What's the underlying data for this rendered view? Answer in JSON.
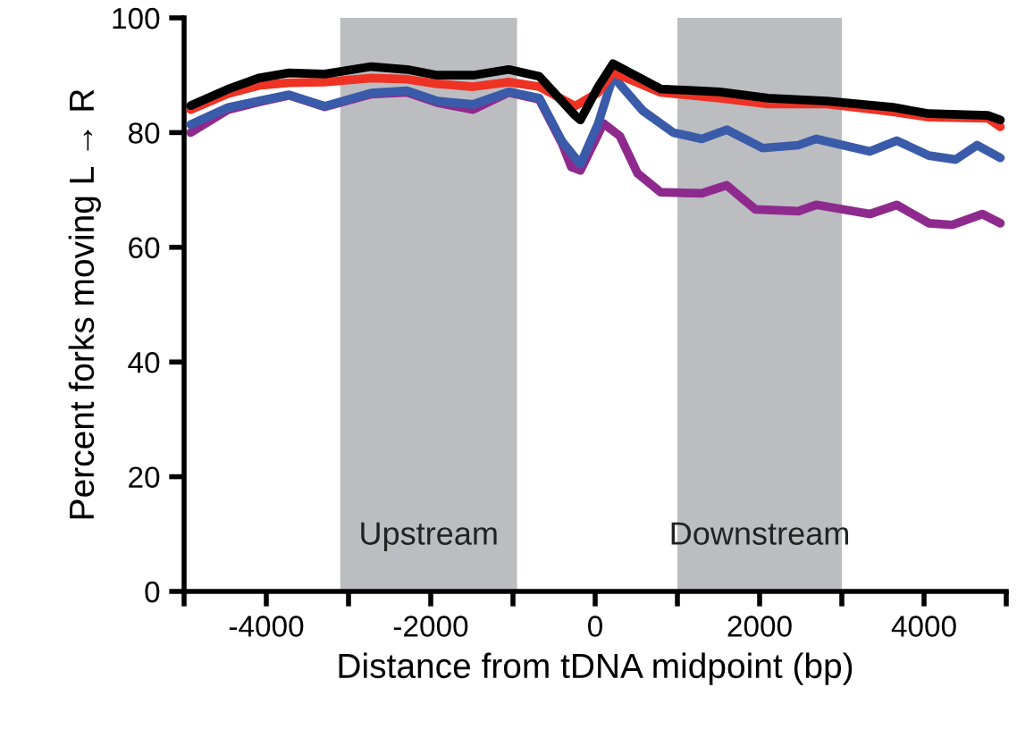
{
  "chart_data": {
    "type": "line",
    "xlabel": "Distance from tDNA midpoint (bp)",
    "ylabel": "Percent forks moving L → R",
    "xlim": [
      -5000,
      5000
    ],
    "ylim": [
      0,
      100
    ],
    "xticks": [
      {
        "value": -5000,
        "label": null
      },
      -4000,
      {
        "value": -3000,
        "label": null
      },
      -2000,
      {
        "value": -1000,
        "label": null
      },
      0,
      {
        "value": 1000,
        "label": null
      },
      2000,
      {
        "value": 3000,
        "label": null
      },
      4000,
      {
        "value": 5000,
        "label": null
      }
    ],
    "yticks": [
      0,
      20,
      40,
      60,
      80,
      100
    ],
    "grid": false,
    "marker": "none",
    "line_style": "solid",
    "bands": [
      {
        "axis": "x",
        "from": -3100,
        "to": -950,
        "label": "Upstream",
        "color": "#bcbdc1"
      },
      {
        "axis": "x",
        "from": 1000,
        "to": 3000,
        "label": "Downstream",
        "color": "#bcbdc1"
      }
    ],
    "series": [
      {
        "color": "#8e2a8e",
        "x": [
          -4920,
          -4463,
          -4093,
          -3724,
          -3289,
          -2724,
          -2289,
          -1920,
          -1485,
          -1050,
          -680,
          -400,
          -290,
          -180,
          100,
          300,
          515,
          797,
          1297,
          1600,
          1950,
          2470,
          2688,
          3340,
          3667,
          4058,
          4340,
          4710,
          4928
        ],
        "values": [
          80,
          84,
          85.3,
          86.5,
          84.5,
          86.7,
          87,
          85.2,
          84,
          87,
          85.8,
          78,
          74,
          73.4,
          81.6,
          79.4,
          72.9,
          69.6,
          69.4,
          70.8,
          66.6,
          66.3,
          67.4,
          65.8,
          67.4,
          64.2,
          63.9,
          65.8,
          64.2
        ]
      },
      {
        "color": "#3a5ba9",
        "x": [
          -4920,
          -4463,
          -4093,
          -3724,
          -3289,
          -2724,
          -2289,
          -1920,
          -1485,
          -1050,
          -680,
          -400,
          -180,
          37,
          217,
          580,
          950,
          1297,
          1600,
          2037,
          2470,
          2688,
          3340,
          3667,
          4058,
          4385,
          4645,
          4928
        ],
        "values": [
          81.4,
          84.4,
          85.5,
          86.6,
          84.6,
          86.9,
          87.3,
          85.5,
          84.9,
          87.1,
          86,
          78.4,
          74.5,
          81.6,
          89.8,
          83.8,
          80,
          78.9,
          80.5,
          77.3,
          77.8,
          78.9,
          76.7,
          78.6,
          76,
          75.3,
          77.8,
          75.6
        ]
      },
      {
        "color": "#ee3224",
        "x": [
          -4920,
          -4463,
          -4093,
          -3724,
          -3289,
          -2724,
          -2289,
          -1920,
          -1485,
          -1050,
          -680,
          -246,
          37,
          217,
          797,
          1515,
          2102,
          2820,
          3623,
          4058,
          4775,
          4928
        ],
        "values": [
          84,
          86.8,
          88.2,
          88.7,
          88.8,
          89.5,
          89.3,
          88.5,
          88,
          88.8,
          88,
          84.6,
          87,
          90.5,
          87,
          86,
          85,
          85,
          83.6,
          82.7,
          82.5,
          81
        ]
      },
      {
        "color": "#000000",
        "x": [
          -4920,
          -4463,
          -4093,
          -3724,
          -3289,
          -2724,
          -2289,
          -1920,
          -1485,
          -1050,
          -680,
          -246,
          -180,
          37,
          217,
          797,
          1515,
          2102,
          2820,
          3623,
          4058,
          4775,
          4928
        ],
        "values": [
          84.7,
          87.6,
          89.5,
          90.4,
          90.2,
          91.5,
          91,
          90,
          90,
          91,
          89.8,
          83,
          82.2,
          88,
          92,
          87.6,
          87.1,
          86,
          85.5,
          84.4,
          83.3,
          83,
          82.2
        ]
      }
    ]
  }
}
